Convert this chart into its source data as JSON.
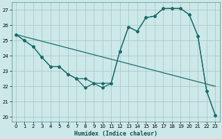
{
  "xlabel": "Humidex (Indice chaleur)",
  "xlim": [
    -0.5,
    23.5
  ],
  "ylim": [
    19.7,
    27.5
  ],
  "yticks": [
    20,
    21,
    22,
    23,
    24,
    25,
    26,
    27
  ],
  "xticks": [
    0,
    1,
    2,
    3,
    4,
    5,
    6,
    7,
    8,
    9,
    10,
    11,
    12,
    13,
    14,
    15,
    16,
    17,
    18,
    19,
    20,
    21,
    22,
    23
  ],
  "bg_color": "#cce8e8",
  "line_color": "#1a6b6b",
  "grid_color": "#adc8c8",
  "series1_x": [
    0,
    1,
    2,
    3,
    4,
    5,
    6,
    7,
    8,
    9,
    10,
    11,
    12,
    13,
    14,
    15,
    16,
    17,
    18,
    19,
    20,
    21,
    22,
    23
  ],
  "series1_y": [
    25.4,
    25.0,
    24.6,
    23.9,
    23.3,
    23.3,
    22.8,
    22.5,
    21.9,
    22.2,
    22.2,
    22.2,
    24.3,
    25.9,
    25.6,
    26.5,
    26.6,
    27.1,
    27.1,
    27.1,
    26.7,
    25.3,
    21.7,
    20.1
  ],
  "series2_x": [
    0,
    1,
    2,
    3,
    4,
    5,
    6,
    7,
    8,
    9,
    10,
    11,
    12,
    13,
    14,
    15,
    16,
    17,
    18,
    19,
    20,
    21,
    22,
    23
  ],
  "series2_y": [
    25.4,
    25.0,
    24.6,
    23.9,
    23.3,
    23.3,
    22.8,
    22.5,
    22.5,
    22.2,
    21.9,
    22.2,
    24.3,
    25.9,
    25.6,
    26.5,
    26.6,
    27.1,
    27.1,
    27.1,
    26.7,
    25.3,
    21.7,
    20.1
  ],
  "series3_x": [
    0,
    23
  ],
  "series3_y": [
    25.4,
    22.0
  ]
}
